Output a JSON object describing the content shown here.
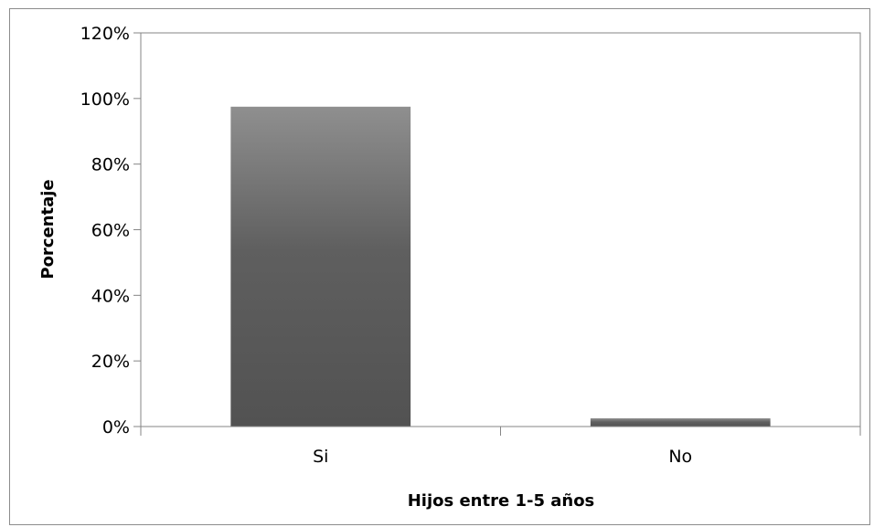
{
  "chart_data": {
    "type": "bar",
    "categories": [
      "Si",
      "No"
    ],
    "values": [
      97.5,
      2.5
    ],
    "xlabel": "Hijos entre 1-5 años",
    "ylabel": "Porcentaje",
    "ylim": [
      0,
      120
    ],
    "yticks": [
      0,
      20,
      40,
      60,
      80,
      100,
      120
    ],
    "ytick_labels": [
      "0%",
      "20%",
      "40%",
      "60%",
      "80%",
      "100%",
      "120%"
    ],
    "grid": false,
    "legend": "none",
    "colors": {
      "bar_top": "#8f8f8f",
      "bar_bottom": "#525252",
      "axis": "#868686"
    }
  }
}
